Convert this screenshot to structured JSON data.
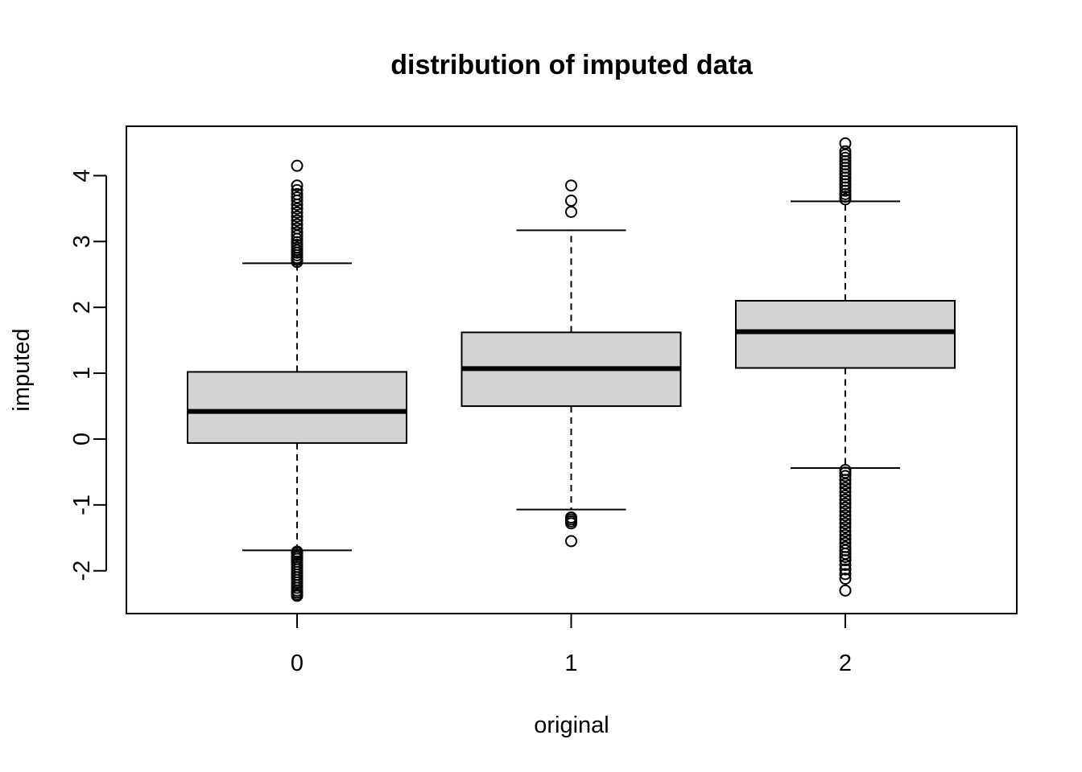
{
  "chart_data": {
    "type": "boxplot",
    "title": "distribution of imputed data",
    "xlabel": "original",
    "ylabel": "imputed",
    "categories": [
      "0",
      "1",
      "2"
    ],
    "y_ticks": [
      -2,
      -1,
      0,
      1,
      2,
      3,
      4
    ],
    "y_tick_labels": [
      "-2",
      "-1",
      "0",
      "1",
      "2",
      "3",
      "4"
    ],
    "ylim": [
      -2.65,
      4.75
    ],
    "boxes": [
      {
        "category": "0",
        "whisker_low": -1.69,
        "q1": -0.06,
        "median": 0.42,
        "q3": 1.02,
        "whisker_high": 2.67,
        "outliers": [
          -2.38,
          -2.36,
          -2.33,
          -2.3,
          -2.26,
          -2.22,
          -2.18,
          -2.14,
          -2.1,
          -2.06,
          -2.02,
          -1.98,
          -1.94,
          -1.9,
          -1.86,
          -1.82,
          -1.79,
          -1.76,
          -1.73,
          -1.71,
          2.69,
          2.72,
          2.75,
          2.79,
          2.83,
          2.87,
          2.91,
          2.95,
          2.99,
          3.04,
          3.09,
          3.14,
          3.2,
          3.26,
          3.32,
          3.38,
          3.44,
          3.5,
          3.56,
          3.62,
          3.67,
          3.72,
          3.78,
          3.85,
          4.15
        ]
      },
      {
        "category": "1",
        "whisker_low": -1.07,
        "q1": 0.5,
        "median": 1.07,
        "q3": 1.62,
        "whisker_high": 3.17,
        "outliers": [
          -1.55,
          -1.28,
          -1.25,
          -1.22,
          -1.19,
          3.45,
          3.62,
          3.85
        ]
      },
      {
        "category": "2",
        "whisker_low": -0.44,
        "q1": 1.08,
        "median": 1.63,
        "q3": 2.1,
        "whisker_high": 3.61,
        "outliers": [
          -2.3,
          -2.12,
          -2.05,
          -1.98,
          -1.91,
          -1.84,
          -1.79,
          -1.74,
          -1.69,
          -1.64,
          -1.58,
          -1.52,
          -1.46,
          -1.4,
          -1.34,
          -1.28,
          -1.22,
          -1.16,
          -1.1,
          -1.04,
          -0.98,
          -0.92,
          -0.86,
          -0.8,
          -0.74,
          -0.68,
          -0.62,
          -0.56,
          -0.51,
          -0.47,
          3.64,
          3.68,
          3.72,
          3.77,
          3.82,
          3.87,
          3.92,
          3.97,
          4.02,
          4.07,
          4.12,
          4.17,
          4.22,
          4.27,
          4.32,
          4.37,
          4.49
        ]
      }
    ],
    "box_fill": "#d3d3d3",
    "line_color": "#000000"
  }
}
